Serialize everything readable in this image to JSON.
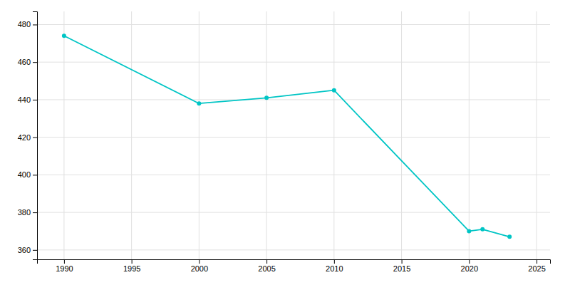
{
  "chart_data": {
    "type": "line",
    "x": [
      1990,
      2000,
      2005,
      2010,
      2020,
      2021,
      2023
    ],
    "values": [
      474,
      438,
      441,
      445,
      370,
      371,
      367
    ],
    "color": "#00C5C5",
    "marker": "circle",
    "xlim": [
      1988,
      2026
    ],
    "ylim": [
      355,
      487
    ],
    "xticks": [
      1990,
      1995,
      2000,
      2005,
      2010,
      2015,
      2020,
      2025
    ],
    "yticks": [
      360,
      380,
      400,
      420,
      440,
      460,
      480
    ],
    "grid": true
  }
}
